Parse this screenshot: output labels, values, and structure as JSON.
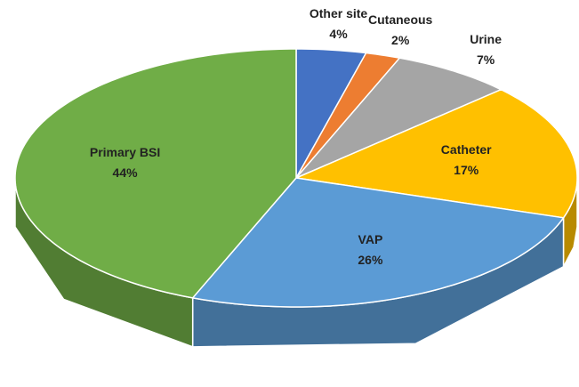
{
  "chart_data": {
    "type": "pie",
    "categories": [
      "Other site",
      "Cutaneous",
      "Urine",
      "Catheter",
      "VAP",
      "Primary BSI"
    ],
    "values": [
      4,
      2,
      7,
      17,
      26,
      44
    ],
    "value_labels": [
      "4%",
      "2%",
      "7%",
      "17%",
      "26%",
      "44%"
    ],
    "colors": [
      "#4472c4",
      "#ed7d31",
      "#a5a5a5",
      "#ffc000",
      "#5b9bd5",
      "#70ad47"
    ]
  }
}
